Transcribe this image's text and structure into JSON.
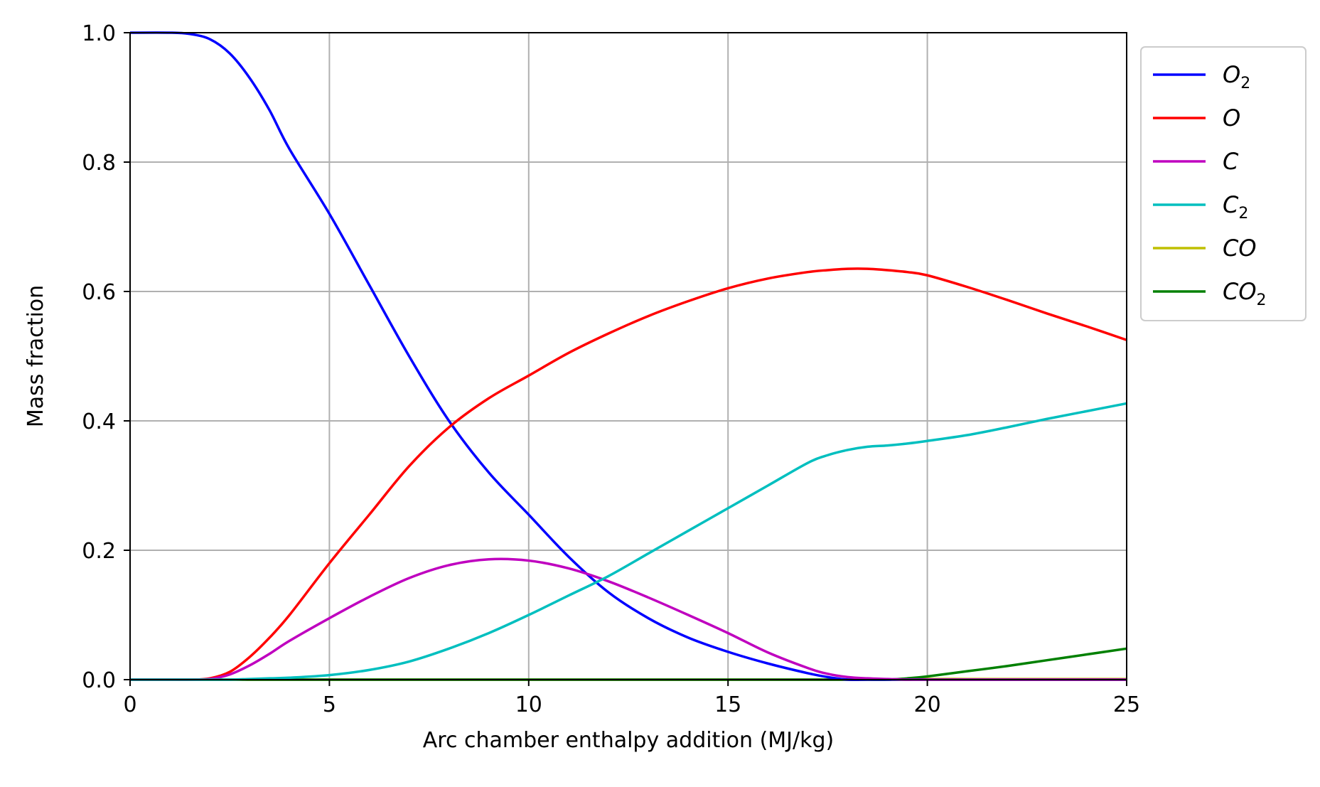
{
  "chart_data": {
    "type": "line",
    "title": "",
    "xlabel": "Arc chamber enthalpy addition (MJ/kg)",
    "ylabel": "Mass fraction",
    "xlim": [
      0,
      25
    ],
    "ylim": [
      0,
      1.0
    ],
    "xticks": [
      "0",
      "5",
      "10",
      "15",
      "20",
      "25"
    ],
    "yticks": [
      "0.0",
      "0.2",
      "0.4",
      "0.6",
      "0.8",
      "1.0"
    ],
    "grid": true,
    "legend_position": "outside-upper-right",
    "x": [
      0,
      1,
      1.5,
      2,
      2.5,
      3,
      3.5,
      4,
      5,
      6,
      7,
      8,
      9,
      10,
      11,
      12,
      13,
      14,
      15,
      16,
      17,
      17.5,
      18,
      18.5,
      19,
      19.5,
      20,
      21,
      22,
      23,
      24,
      25
    ],
    "series": [
      {
        "name": "O",
        "sub": "2",
        "color": "#0000ff",
        "values": [
          1.0,
          1.0,
          0.998,
          0.99,
          0.968,
          0.93,
          0.88,
          0.82,
          0.72,
          0.61,
          0.5,
          0.4,
          0.32,
          0.255,
          0.19,
          0.135,
          0.095,
          0.065,
          0.043,
          0.025,
          0.01,
          0.004,
          0.0,
          0.0,
          0.0,
          0.0,
          0.0,
          0.0,
          0.0,
          0.0,
          0.0,
          0.0
        ]
      },
      {
        "name": "O",
        "sub": "",
        "color": "#ff0000",
        "values": [
          0.0,
          0.0,
          0.0,
          0.002,
          0.012,
          0.035,
          0.065,
          0.1,
          0.18,
          0.255,
          0.33,
          0.39,
          0.435,
          0.47,
          0.505,
          0.535,
          0.562,
          0.585,
          0.605,
          0.62,
          0.63,
          0.633,
          0.635,
          0.635,
          0.633,
          0.63,
          0.625,
          0.607,
          0.587,
          0.566,
          0.546,
          0.525
        ]
      },
      {
        "name": "C",
        "sub": "",
        "color": "#bf00bf",
        "values": [
          0.0,
          0.0,
          0.0,
          0.001,
          0.008,
          0.022,
          0.04,
          0.06,
          0.095,
          0.128,
          0.157,
          0.177,
          0.186,
          0.184,
          0.172,
          0.152,
          0.127,
          0.1,
          0.072,
          0.042,
          0.018,
          0.009,
          0.004,
          0.002,
          0.001,
          0.0,
          0.0,
          0.0,
          0.0,
          0.0,
          0.0,
          0.0
        ]
      },
      {
        "name": "C",
        "sub": "2",
        "color": "#00bfbf",
        "values": [
          0.0,
          0.0,
          0.0,
          0.0,
          0.0,
          0.001,
          0.002,
          0.003,
          0.007,
          0.015,
          0.028,
          0.048,
          0.072,
          0.1,
          0.13,
          0.16,
          0.195,
          0.23,
          0.265,
          0.3,
          0.335,
          0.347,
          0.355,
          0.36,
          0.362,
          0.365,
          0.369,
          0.378,
          0.39,
          0.403,
          0.415,
          0.427
        ]
      },
      {
        "name": "CO",
        "sub": "",
        "color": "#bfbf00",
        "values": [
          0,
          0,
          0,
          0,
          0,
          0,
          0,
          0,
          0,
          0,
          0,
          0,
          0,
          0,
          0,
          0,
          0,
          0,
          0,
          0,
          0,
          0,
          0,
          0,
          0,
          0,
          0.001,
          0.001,
          0.001,
          0.001,
          0.001,
          0.001
        ]
      },
      {
        "name": "CO",
        "sub": "2",
        "color": "#008000",
        "values": [
          0,
          0,
          0,
          0,
          0,
          0,
          0,
          0,
          0,
          0,
          0,
          0,
          0,
          0,
          0,
          0,
          0,
          0,
          0,
          0,
          0,
          0,
          0,
          0,
          0.0,
          0.002,
          0.005,
          0.013,
          0.021,
          0.03,
          0.039,
          0.048
        ]
      }
    ]
  }
}
